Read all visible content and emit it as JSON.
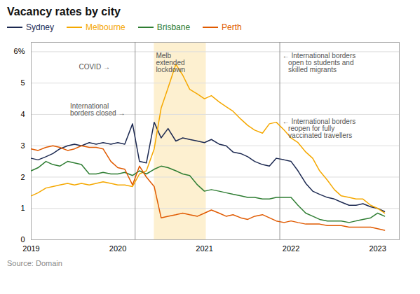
{
  "chart_data": {
    "type": "line",
    "title": "Vacancy rates by city",
    "source": "Source: Domain",
    "x": [
      2019.0,
      2019.08,
      2019.17,
      2019.25,
      2019.33,
      2019.42,
      2019.5,
      2019.58,
      2019.67,
      2019.75,
      2019.83,
      2019.92,
      2020.0,
      2020.08,
      2020.17,
      2020.25,
      2020.33,
      2020.42,
      2020.5,
      2020.58,
      2020.67,
      2020.75,
      2020.83,
      2020.92,
      2021.0,
      2021.08,
      2021.17,
      2021.25,
      2021.33,
      2021.42,
      2021.5,
      2021.58,
      2021.67,
      2021.75,
      2021.83,
      2021.92,
      2022.0,
      2022.08,
      2022.17,
      2022.25,
      2022.33,
      2022.42,
      2022.5,
      2022.58,
      2022.67,
      2022.75,
      2022.83,
      2022.92,
      2023.0,
      2023.08
    ],
    "series": [
      {
        "name": "Sydney",
        "color": "#1c2951",
        "values": [
          2.6,
          2.55,
          2.65,
          2.75,
          2.9,
          3.0,
          3.05,
          3.0,
          3.1,
          3.05,
          3.1,
          3.05,
          3.1,
          3.05,
          3.7,
          2.5,
          2.45,
          3.75,
          3.25,
          3.55,
          3.15,
          3.25,
          3.2,
          3.15,
          3.1,
          3.2,
          3.05,
          3.0,
          2.8,
          2.75,
          2.65,
          2.5,
          2.4,
          2.35,
          2.6,
          2.55,
          2.5,
          2.2,
          1.8,
          1.55,
          1.45,
          1.35,
          1.3,
          1.2,
          1.1,
          1.1,
          1.15,
          1.05,
          1.0,
          0.9
        ]
      },
      {
        "name": "Melbourne",
        "color": "#f5a800",
        "values": [
          1.4,
          1.5,
          1.65,
          1.7,
          1.75,
          1.8,
          1.75,
          1.8,
          1.75,
          1.8,
          1.85,
          1.8,
          1.75,
          1.75,
          1.7,
          2.1,
          2.2,
          2.9,
          4.2,
          4.85,
          5.6,
          5.25,
          4.8,
          4.65,
          4.5,
          4.6,
          4.4,
          4.25,
          4.1,
          3.85,
          3.65,
          3.5,
          3.4,
          3.7,
          3.75,
          3.5,
          3.25,
          3.1,
          2.8,
          2.6,
          2.2,
          1.9,
          1.6,
          1.4,
          1.35,
          1.3,
          1.3,
          1.1,
          1.0,
          0.85
        ]
      },
      {
        "name": "Brisbane",
        "color": "#2e7d32",
        "values": [
          2.2,
          2.3,
          2.5,
          2.4,
          2.35,
          2.5,
          2.45,
          2.4,
          2.1,
          2.1,
          2.15,
          2.1,
          2.1,
          2.15,
          2.05,
          2.2,
          2.1,
          2.25,
          2.35,
          2.3,
          2.2,
          2.1,
          2.05,
          1.75,
          1.55,
          1.6,
          1.55,
          1.5,
          1.45,
          1.4,
          1.35,
          1.35,
          1.3,
          1.3,
          1.35,
          1.35,
          1.35,
          1.1,
          0.85,
          0.75,
          0.65,
          0.6,
          0.6,
          0.6,
          0.55,
          0.6,
          0.65,
          0.7,
          0.85,
          0.75
        ]
      },
      {
        "name": "Perth",
        "color": "#e05a00",
        "values": [
          2.9,
          2.85,
          2.95,
          3.0,
          2.95,
          2.85,
          2.9,
          3.0,
          2.95,
          2.95,
          2.9,
          2.5,
          2.3,
          2.25,
          1.75,
          2.35,
          2.0,
          1.7,
          0.7,
          0.75,
          0.8,
          0.85,
          0.8,
          0.75,
          0.85,
          0.95,
          0.85,
          0.75,
          0.8,
          0.7,
          0.65,
          0.75,
          0.8,
          0.7,
          0.6,
          0.55,
          0.6,
          0.55,
          0.5,
          0.5,
          0.5,
          0.45,
          0.45,
          0.45,
          0.4,
          0.4,
          0.4,
          0.4,
          0.35,
          0.3
        ]
      }
    ],
    "xlim": [
      2019.0,
      2023.25
    ],
    "xticks": [
      2019,
      2020,
      2021,
      2022,
      2023
    ],
    "ylim": [
      0,
      6.3
    ],
    "yticks": [
      0,
      1,
      2,
      3,
      4,
      5,
      {
        "value": 6,
        "label": "6%"
      }
    ],
    "grid": "y",
    "legend": "top",
    "vlines": [
      2020.2,
      2021.87
    ],
    "shade": {
      "start": 2020.42,
      "end": 2021.02,
      "color": "#fdf0d0"
    },
    "annotations": [
      {
        "x": 2019.55,
        "y": 5.6,
        "text": "COVID →"
      },
      {
        "x": 2019.45,
        "y": 4.35,
        "text": "International\nborders closed →"
      },
      {
        "x": 2020.44,
        "y": 5.95,
        "text": "Melb\nextended\nlockdown"
      },
      {
        "x": 2021.9,
        "y": 5.95,
        "text": "← International borders\n   open to students and\n   skilled migrants"
      },
      {
        "x": 2021.9,
        "y": 3.85,
        "text": "← International borders\n   reopen for fully\n   vaccinated travellers"
      }
    ]
  }
}
